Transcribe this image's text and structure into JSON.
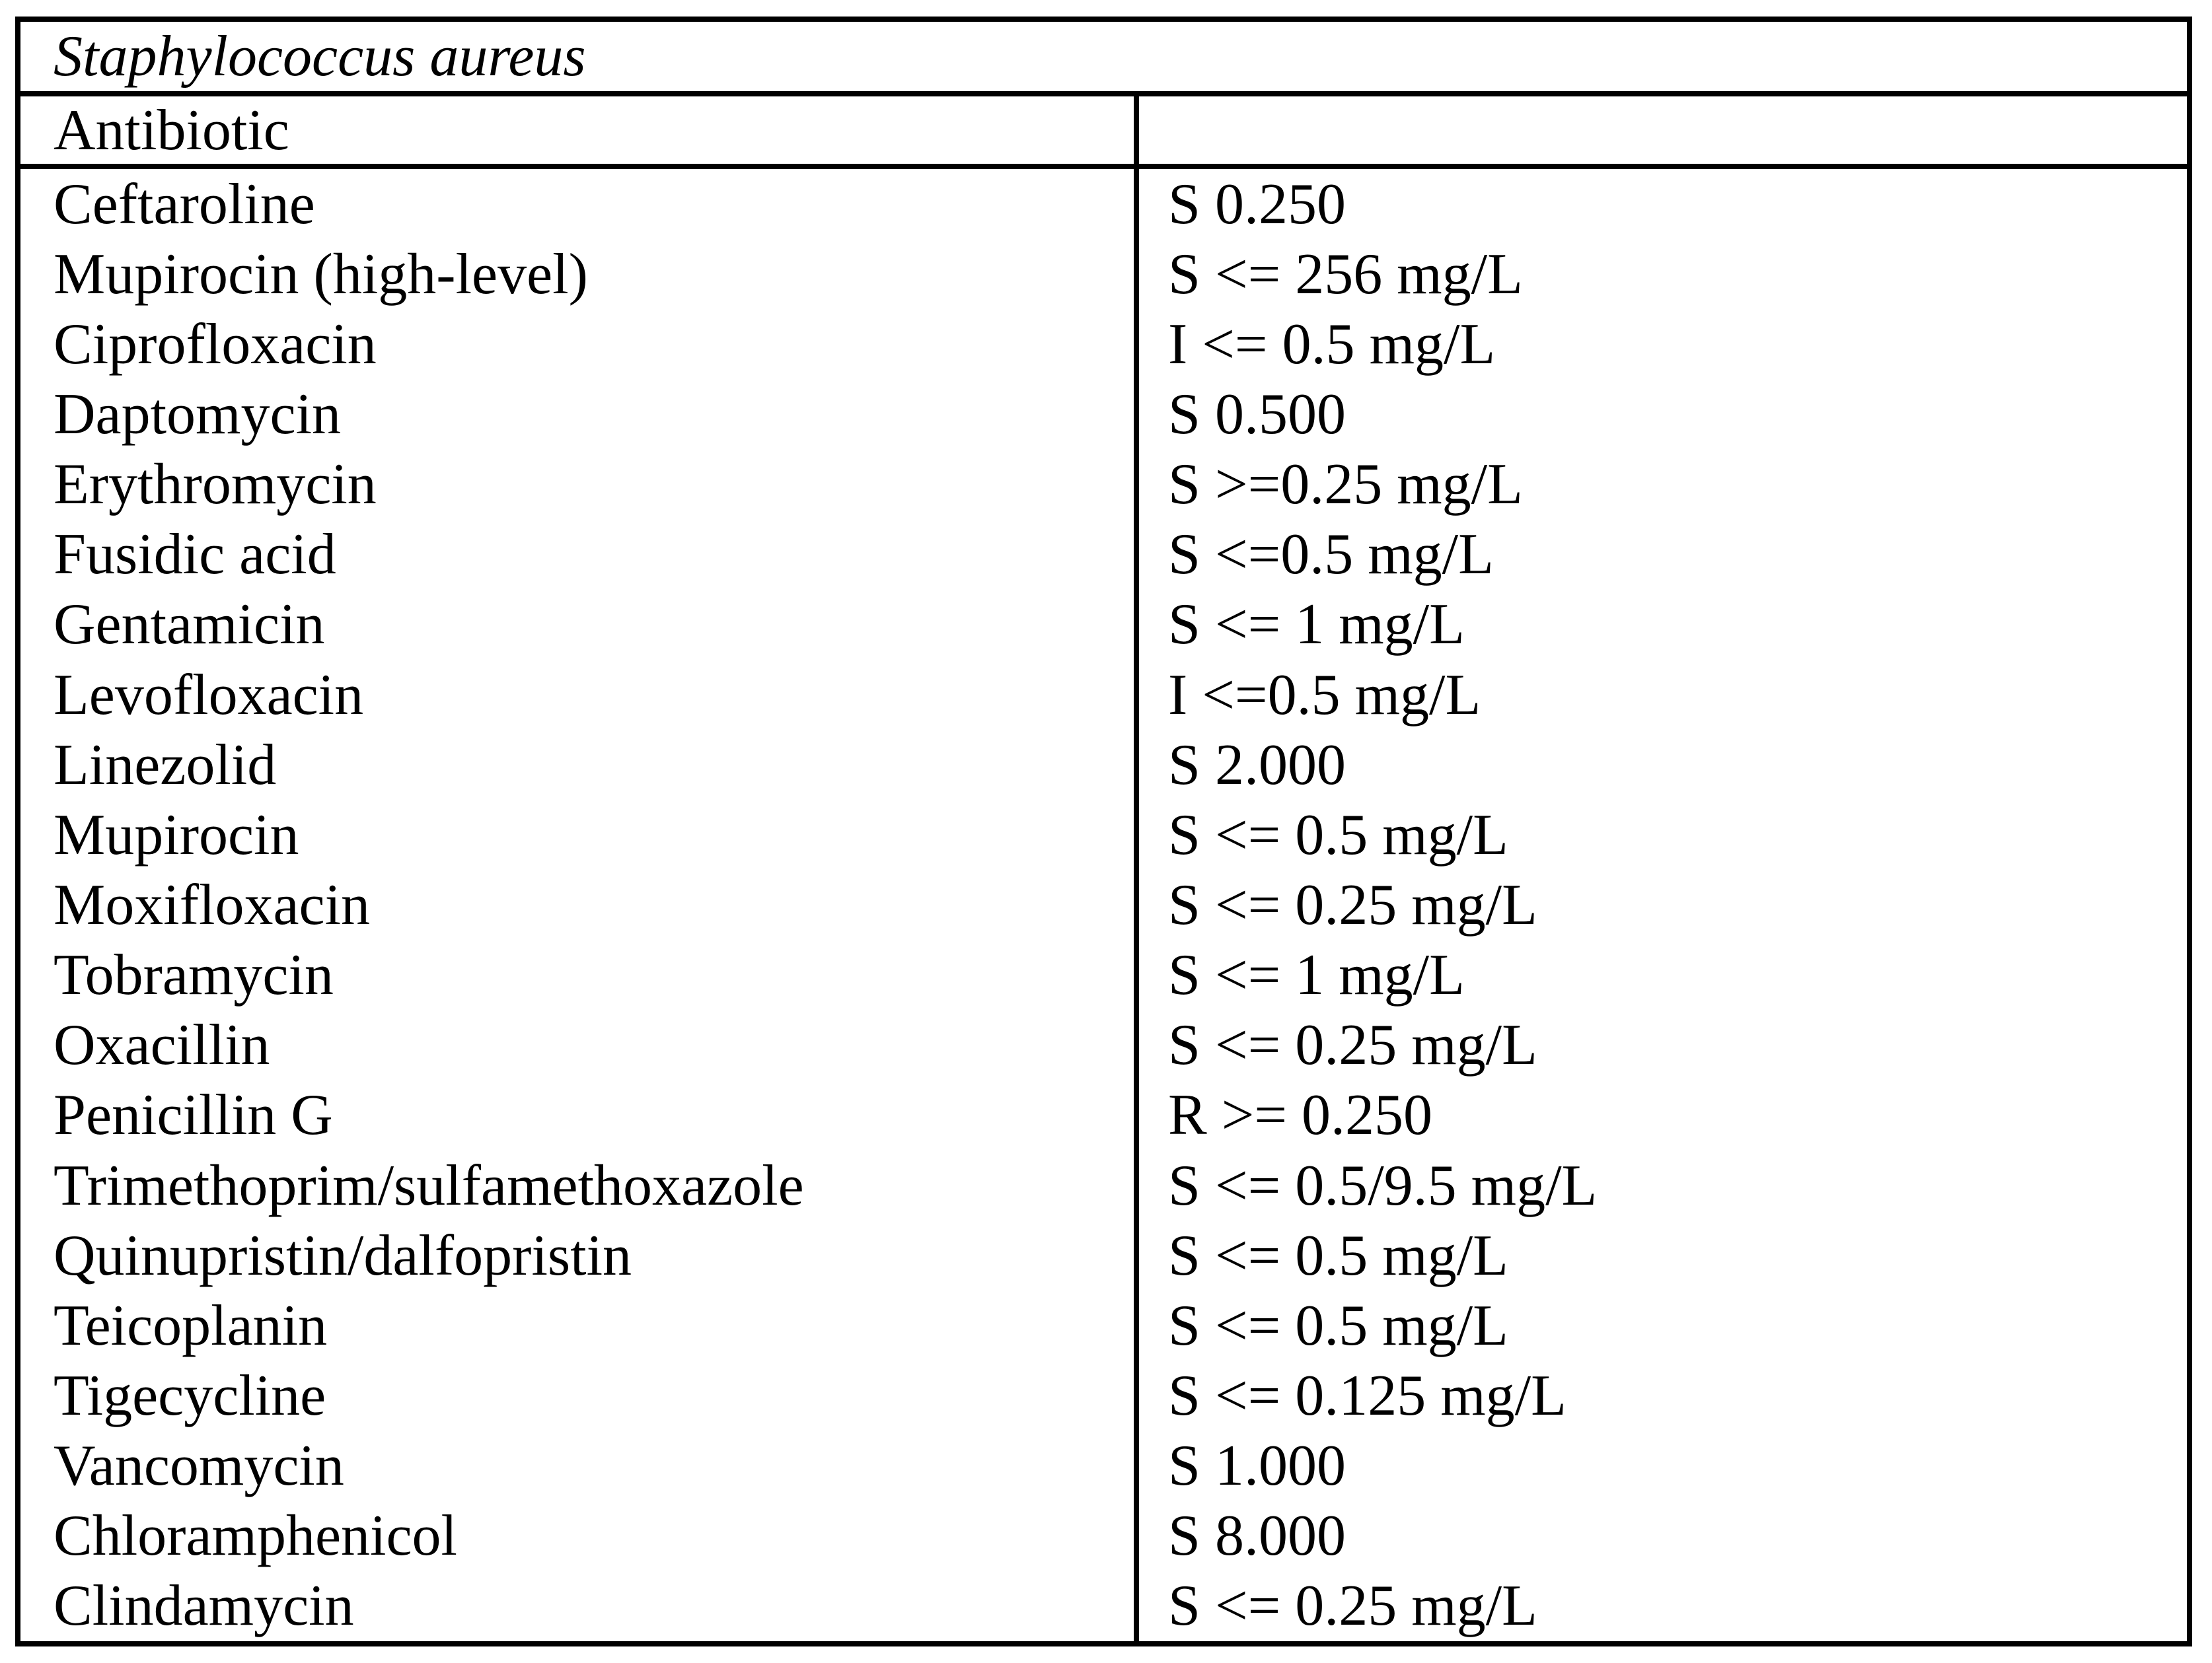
{
  "table": {
    "organism": "Staphylococcus aureus",
    "header": {
      "antibiotic_label": "Antibiotic",
      "value_label": ""
    },
    "rows": [
      {
        "antibiotic": "Ceftaroline",
        "value": "S 0.250"
      },
      {
        "antibiotic": "Mupirocin (high-level)",
        "value": "S <= 256 mg/L"
      },
      {
        "antibiotic": "Ciprofloxacin",
        "value": "I <= 0.5 mg/L"
      },
      {
        "antibiotic": "Daptomycin",
        "value": "S 0.500"
      },
      {
        "antibiotic": "Erythromycin",
        "value": "S >=0.25 mg/L"
      },
      {
        "antibiotic": "Fusidic acid",
        "value": "S <=0.5 mg/L"
      },
      {
        "antibiotic": "Gentamicin",
        "value": "S <= 1 mg/L"
      },
      {
        "antibiotic": "Levofloxacin",
        "value": "I <=0.5 mg/L"
      },
      {
        "antibiotic": "Linezolid",
        "value": "S 2.000"
      },
      {
        "antibiotic": "Mupirocin",
        "value": "S <= 0.5 mg/L"
      },
      {
        "antibiotic": "Moxifloxacin",
        "value": "S <= 0.25 mg/L"
      },
      {
        "antibiotic": "Tobramycin",
        "value": "S <= 1 mg/L"
      },
      {
        "antibiotic": "Oxacillin",
        "value": "S <= 0.25 mg/L"
      },
      {
        "antibiotic": "Penicillin G",
        "value": "R >= 0.250"
      },
      {
        "antibiotic": "Trimethoprim/sulfamethoxazole",
        "value": "S <= 0.5/9.5 mg/L"
      },
      {
        "antibiotic": "Quinupristin/dalfopristin",
        "value": "S <= 0.5 mg/L"
      },
      {
        "antibiotic": "Teicoplanin",
        "value": "S <= 0.5 mg/L"
      },
      {
        "antibiotic": "Tigecycline",
        "value": "S <= 0.125 mg/L"
      },
      {
        "antibiotic": "Vancomycin",
        "value": "S 1.000"
      },
      {
        "antibiotic": "Chloramphenicol",
        "value": "S 8.000"
      },
      {
        "antibiotic": "Clindamycin",
        "value": "S <= 0.25 mg/L"
      }
    ]
  }
}
